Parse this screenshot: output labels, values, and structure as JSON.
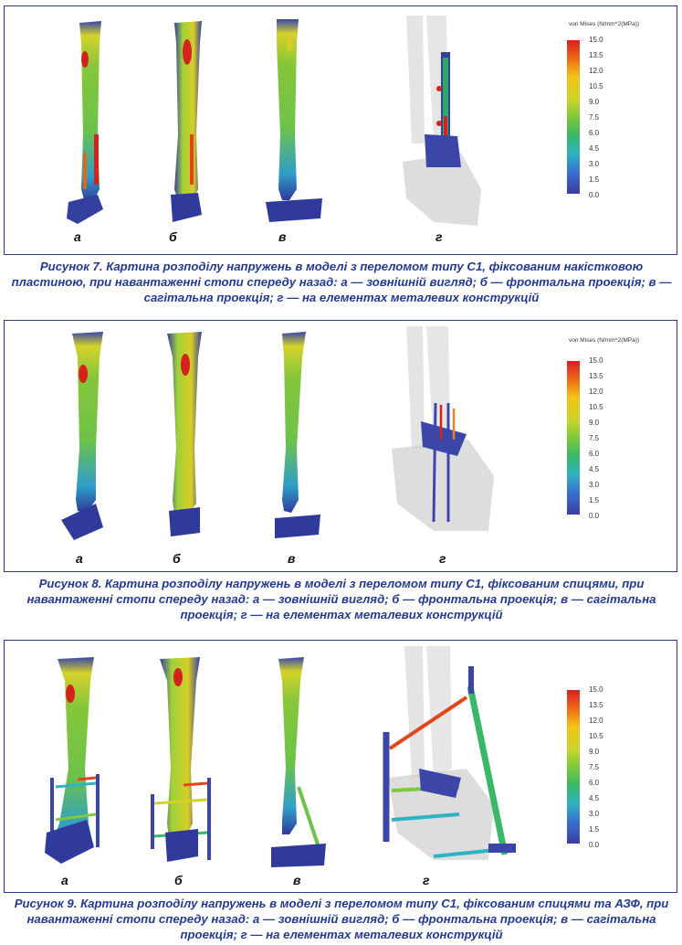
{
  "figures": [
    {
      "caption": "Рисунок 7. Картина розподілу напружень в моделі з переломом типу С1, фіксованим накістковою пластиною, при навантаженні стопи спереду назад: а — зовнішній вигляд; б — фронтальна проекція; в — сагітальна проекція; г — на елементах металевих конструкцій",
      "sublabels": [
        "а",
        "б",
        "в",
        "г"
      ]
    },
    {
      "caption": "Рисунок 8. Картина розподілу напружень в моделі з переломом типу С1, фіксованим спицями, при навантаженні стопи спереду назад: а — зовнішній вигляд; б — фронтальна проекція; в — сагітальна проекція; г — на елементах металевих конструкцій",
      "sublabels": [
        "а",
        "б",
        "в",
        "г"
      ]
    },
    {
      "caption": "Рисунок 9. Картина розподілу напружень в моделі з переломом типу С1, фіксованим спицями та АЗФ, при навантаженні стопи спереду назад: а — зовнішній вигляд; б — фронтальна проекція; в — сагітальна проекція; г — на елементах металевих конструкцій",
      "sublabels": [
        "а",
        "б",
        "в",
        "г"
      ]
    }
  ],
  "legend": {
    "title": "von Mises (N/mm^2(MPa))",
    "ticks": [
      "15.0",
      "13.5",
      "12.0",
      "10.5",
      "9.0",
      "7.5",
      "6.0",
      "4.5",
      "3.0",
      "1.5",
      "0.0"
    ]
  }
}
